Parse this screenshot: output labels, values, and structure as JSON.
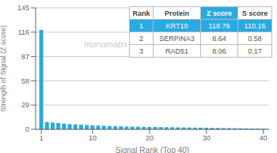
{
  "chart_data": {
    "type": "bar",
    "x": [
      1,
      2,
      3,
      4,
      5,
      6,
      7,
      8,
      9,
      10,
      11,
      12,
      13,
      14,
      15,
      16,
      17,
      18,
      19,
      20,
      21,
      22,
      23,
      24,
      25,
      26,
      27,
      28,
      29,
      30,
      31,
      32,
      33,
      34,
      35,
      36,
      37,
      38,
      39,
      40
    ],
    "values": [
      118.79,
      8.64,
      8.06,
      7.5,
      6.8,
      6.2,
      5.9,
      5.5,
      5.1,
      4.8,
      4.5,
      4.2,
      4.0,
      3.8,
      3.6,
      3.4,
      3.2,
      3.1,
      3.0,
      2.9,
      2.8,
      2.7,
      2.6,
      2.5,
      2.4,
      2.3,
      2.2,
      2.1,
      2.0,
      1.9,
      1.8,
      1.7,
      1.6,
      1.5,
      1.4,
      1.3,
      1.2,
      1.1,
      1.0,
      0.9
    ],
    "color": "#29aae2",
    "xlabel": "Signal Rank (Top 40)",
    "ylabel": "Strength of Signal (Z score)",
    "xlim": [
      0,
      41
    ],
    "xticks": [
      1,
      10,
      20,
      30,
      40
    ],
    "ylim": [
      0,
      145
    ],
    "yticks": [
      0,
      29,
      58,
      87,
      116,
      145
    ],
    "grid": true,
    "annotations": [
      "monomabs"
    ],
    "table": {
      "headers": [
        "Rank",
        "Protein",
        "Z score",
        "S score"
      ],
      "rows": [
        [
          "1",
          "KRT10",
          "118.79",
          "110.16"
        ],
        [
          "2",
          "SERPINA3",
          "8.64",
          "0.58"
        ],
        [
          "3",
          "RAD51",
          "8.06",
          "0.17"
        ]
      ]
    }
  }
}
